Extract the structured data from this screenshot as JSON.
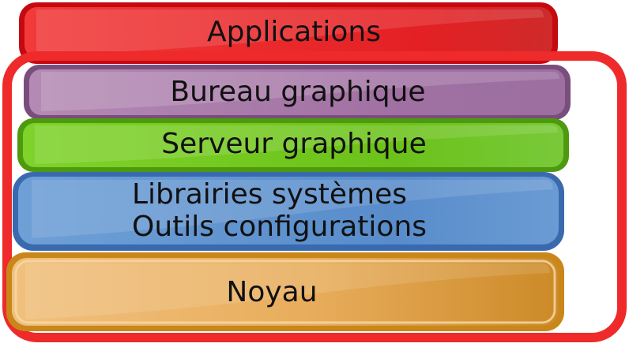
{
  "layers": [
    {
      "label": "Applications",
      "color": "#e8252b",
      "edge": "#c40a10"
    },
    {
      "label": "Bureau graphique",
      "color": "#a67aa6",
      "edge": "#7a4e7c"
    },
    {
      "label": "Serveur graphique",
      "color": "#6fc71c",
      "edge": "#4e9a0f"
    },
    {
      "lines": [
        "Librairies systèmes",
        "Outils configurations"
      ],
      "color": "#5f92cf",
      "edge": "#3a6aae"
    },
    {
      "label": "Noyau",
      "color": "#e7ac5e",
      "edge": "#c9871a"
    }
  ],
  "bracket_color": "#ee2a2a"
}
